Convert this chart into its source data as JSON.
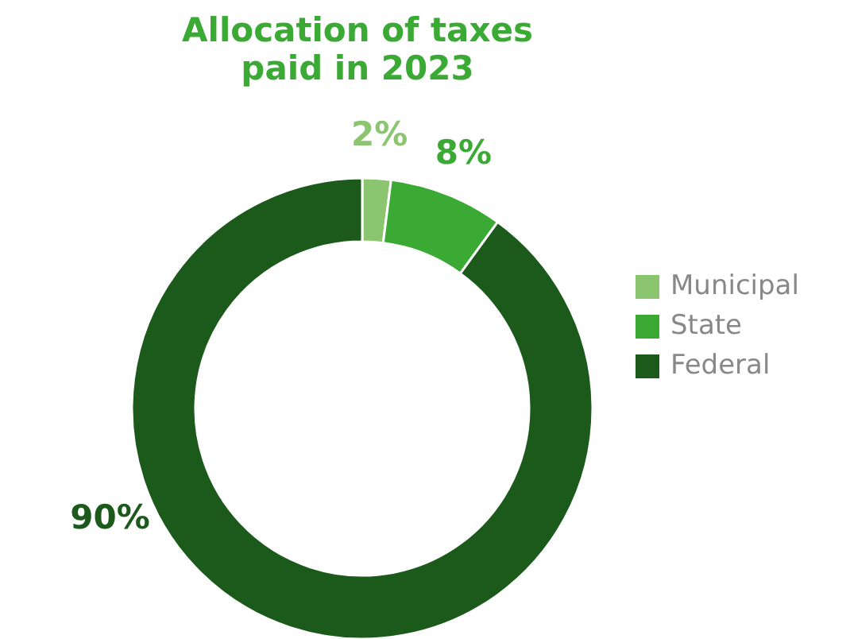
{
  "chart_data": {
    "type": "donut",
    "title": "Allocation of taxes paid in 2023",
    "categories": [
      "Municipal",
      "State",
      "Federal"
    ],
    "values": [
      2,
      8,
      90
    ],
    "colors": [
      "#8cc56f",
      "#3aaa35",
      "#1c5a1c"
    ],
    "value_labels": [
      "2%",
      "8%",
      "90%"
    ],
    "legend": "right"
  }
}
